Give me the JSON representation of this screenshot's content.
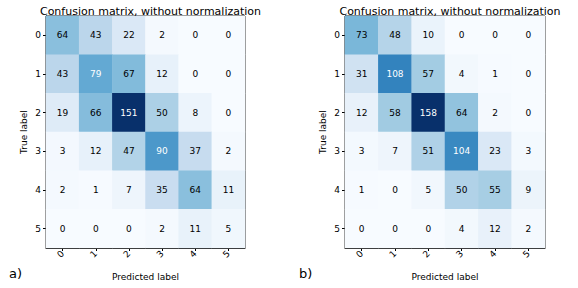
{
  "chart_data": [
    {
      "type": "heatmap",
      "title": "Confusion matrix, without normalization",
      "panel": "a)",
      "x_label": "Predicted label",
      "y_label": "True label",
      "categories": [
        "0",
        "1",
        "2",
        "3",
        "4",
        "5"
      ],
      "y_categories": [
        "0",
        "1",
        "2",
        "3",
        "4",
        "5"
      ],
      "cells": [
        [
          64,
          43,
          22,
          2,
          0,
          0
        ],
        [
          43,
          79,
          67,
          12,
          0,
          0
        ],
        [
          19,
          66,
          151,
          50,
          8,
          0
        ],
        [
          3,
          12,
          47,
          90,
          37,
          2
        ],
        [
          2,
          1,
          7,
          35,
          64,
          11
        ],
        [
          0,
          0,
          0,
          2,
          11,
          5
        ]
      ],
      "data_labels": true,
      "grid": false,
      "color": "Blues"
    },
    {
      "type": "heatmap",
      "title": "Confusion matrix, without normalization",
      "panel": "b)",
      "x_label": "Predicted label",
      "y_label": "True label",
      "categories": [
        "0",
        "1",
        "2",
        "3",
        "4",
        "5"
      ],
      "y_categories": [
        "0",
        "1",
        "2",
        "3",
        "4",
        "5"
      ],
      "cells": [
        [
          73,
          48,
          10,
          0,
          0,
          0
        ],
        [
          31,
          108,
          57,
          4,
          1,
          0
        ],
        [
          12,
          58,
          158,
          64,
          2,
          0
        ],
        [
          3,
          7,
          51,
          104,
          23,
          3
        ],
        [
          1,
          0,
          5,
          50,
          55,
          9
        ],
        [
          0,
          0,
          0,
          4,
          12,
          2
        ]
      ],
      "data_labels": true,
      "grid": false,
      "color": "Blues"
    }
  ]
}
